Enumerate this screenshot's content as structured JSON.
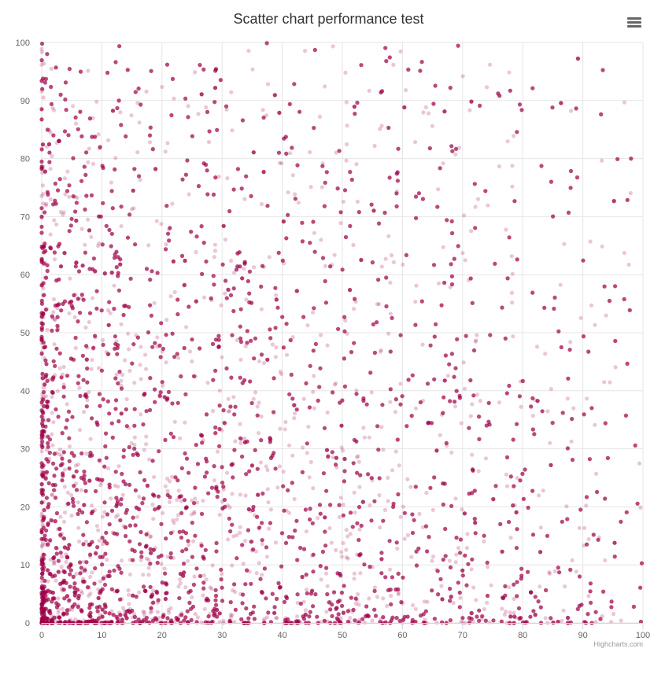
{
  "page": {
    "title": "Scatter chart performance test",
    "credits": "Highcharts.com"
  },
  "menu": {
    "icon": "hamburger-menu-icon"
  },
  "chart_data": {
    "type": "scatter",
    "title": "Scatter chart performance test",
    "xlabel": "",
    "ylabel": "",
    "xlim": [
      0,
      100
    ],
    "ylim": [
      0,
      100
    ],
    "x_ticks": [
      "0",
      "10",
      "20",
      "30",
      "40",
      "50",
      "60",
      "70",
      "80",
      "90",
      "100"
    ],
    "y_ticks": [
      "0",
      "10",
      "20",
      "30",
      "40",
      "50",
      "60",
      "70",
      "80",
      "90",
      "100"
    ],
    "grid": true,
    "legend": "none",
    "series": [
      {
        "color": "#a1004a",
        "distribution": "dense cluster at low x and low y, density decreasing toward higher values",
        "x_range": [
          0,
          100
        ],
        "y_range": [
          0,
          100
        ],
        "approx_point_count": 10000
      }
    ]
  }
}
